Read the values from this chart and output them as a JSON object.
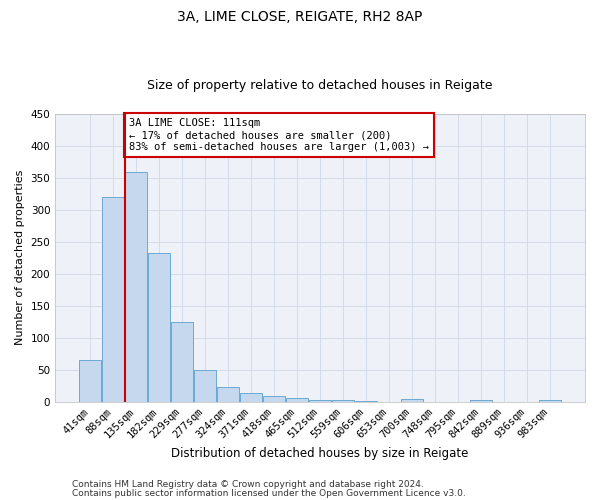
{
  "title1": "3A, LIME CLOSE, REIGATE, RH2 8AP",
  "title2": "Size of property relative to detached houses in Reigate",
  "xlabel": "Distribution of detached houses by size in Reigate",
  "ylabel": "Number of detached properties",
  "categories": [
    "41sqm",
    "88sqm",
    "135sqm",
    "182sqm",
    "229sqm",
    "277sqm",
    "324sqm",
    "371sqm",
    "418sqm",
    "465sqm",
    "512sqm",
    "559sqm",
    "606sqm",
    "653sqm",
    "700sqm",
    "748sqm",
    "795sqm",
    "842sqm",
    "889sqm",
    "936sqm",
    "983sqm"
  ],
  "values": [
    65,
    320,
    360,
    233,
    125,
    50,
    23,
    13,
    8,
    5,
    3,
    3,
    1,
    0,
    4,
    0,
    0,
    3,
    0,
    0,
    3
  ],
  "bar_color": "#c5d8ed",
  "bar_edge_color": "#6aaad4",
  "vline_x": 1.5,
  "vline_color": "#cc0000",
  "annotation_text": "3A LIME CLOSE: 111sqm\n← 17% of detached houses are smaller (200)\n83% of semi-detached houses are larger (1,003) →",
  "annotation_box_color": "#ffffff",
  "annotation_box_edge": "#cc0000",
  "ylim": [
    0,
    450
  ],
  "yticks": [
    0,
    50,
    100,
    150,
    200,
    250,
    300,
    350,
    400,
    450
  ],
  "grid_color": "#d0d8e8",
  "bg_color": "#eef2f8",
  "footer1": "Contains HM Land Registry data © Crown copyright and database right 2024.",
  "footer2": "Contains public sector information licensed under the Open Government Licence v3.0.",
  "title1_fontsize": 10,
  "title2_fontsize": 9,
  "xlabel_fontsize": 8.5,
  "ylabel_fontsize": 8,
  "tick_fontsize": 7.5,
  "footer_fontsize": 6.5,
  "annotation_fontsize": 7.5
}
